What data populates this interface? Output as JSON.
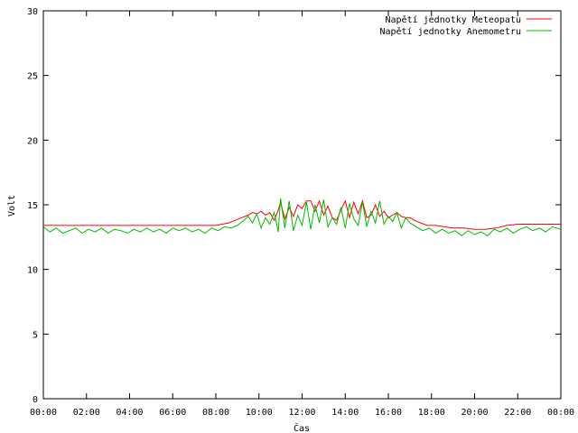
{
  "chart_data": {
    "type": "line",
    "title": "",
    "xlabel": "Čas",
    "ylabel": "Volt",
    "xlim": [
      0,
      24
    ],
    "ylim": [
      0,
      30
    ],
    "x_ticks": [
      "00:00",
      "02:00",
      "04:00",
      "06:00",
      "08:00",
      "10:00",
      "12:00",
      "14:00",
      "16:00",
      "18:00",
      "20:00",
      "22:00",
      "00:00"
    ],
    "y_ticks": [
      0,
      5,
      10,
      15,
      20,
      25,
      30
    ],
    "grid": false,
    "legend": "top-right",
    "series": [
      {
        "name": "Napětí jednotky Meteopatu",
        "color": "#ff0000",
        "x": [
          0,
          0.5,
          1,
          1.5,
          2,
          2.5,
          3,
          3.5,
          4,
          4.5,
          5,
          5.5,
          6,
          6.5,
          7,
          7.5,
          8,
          8.3,
          8.6,
          8.9,
          9.2,
          9.5,
          9.7,
          9.9,
          10.1,
          10.3,
          10.5,
          10.7,
          10.9,
          11.0,
          11.2,
          11.4,
          11.6,
          11.8,
          12.0,
          12.2,
          12.4,
          12.6,
          12.8,
          13.0,
          13.2,
          13.4,
          13.6,
          13.8,
          14.0,
          14.2,
          14.4,
          14.6,
          14.8,
          15.0,
          15.2,
          15.4,
          15.6,
          15.8,
          16.0,
          16.2,
          16.4,
          16.6,
          16.8,
          17.0,
          17.2,
          17.5,
          17.8,
          18.2,
          18.6,
          19.0,
          19.5,
          20.0,
          20.5,
          21.0,
          21.5,
          22.0,
          22.5,
          23.0,
          23.5,
          24.0
        ],
        "y": [
          13.4,
          13.4,
          13.4,
          13.4,
          13.4,
          13.4,
          13.4,
          13.4,
          13.4,
          13.4,
          13.4,
          13.4,
          13.4,
          13.4,
          13.4,
          13.4,
          13.4,
          13.5,
          13.6,
          13.8,
          14.0,
          14.2,
          14.4,
          14.3,
          14.5,
          14.2,
          14.4,
          13.8,
          14.6,
          15.2,
          13.9,
          14.8,
          14.1,
          15.0,
          14.7,
          15.3,
          15.3,
          14.5,
          15.3,
          14.2,
          14.9,
          14.0,
          13.8,
          14.6,
          15.3,
          14.0,
          15.2,
          14.3,
          15.3,
          14.0,
          14.2,
          15.0,
          14.1,
          14.5,
          14.0,
          14.2,
          14.4,
          14.1,
          14.0,
          14.0,
          13.8,
          13.6,
          13.4,
          13.4,
          13.3,
          13.2,
          13.2,
          13.1,
          13.1,
          13.2,
          13.4,
          13.5,
          13.5,
          13.5,
          13.5,
          13.5
        ]
      },
      {
        "name": "Napětí jednotky Anemometru",
        "color": "#00bb00",
        "x": [
          0,
          0.3,
          0.6,
          0.9,
          1.2,
          1.5,
          1.8,
          2.1,
          2.4,
          2.7,
          3.0,
          3.3,
          3.6,
          3.9,
          4.2,
          4.5,
          4.8,
          5.1,
          5.4,
          5.7,
          6.0,
          6.3,
          6.6,
          6.9,
          7.2,
          7.5,
          7.8,
          8.1,
          8.4,
          8.7,
          9.0,
          9.3,
          9.5,
          9.7,
          9.9,
          10.1,
          10.3,
          10.5,
          10.7,
          10.9,
          11.0,
          11.2,
          11.4,
          11.6,
          11.8,
          12.0,
          12.2,
          12.4,
          12.6,
          12.8,
          13.0,
          13.2,
          13.4,
          13.6,
          13.8,
          14.0,
          14.2,
          14.4,
          14.6,
          14.8,
          15.0,
          15.2,
          15.4,
          15.6,
          15.8,
          16.0,
          16.2,
          16.4,
          16.6,
          16.8,
          17.0,
          17.3,
          17.6,
          17.9,
          18.2,
          18.5,
          18.8,
          19.1,
          19.4,
          19.7,
          20.0,
          20.3,
          20.6,
          20.9,
          21.2,
          21.5,
          21.8,
          22.1,
          22.4,
          22.7,
          23.0,
          23.3,
          23.6,
          24.0
        ],
        "y": [
          13.3,
          12.9,
          13.2,
          12.8,
          13.0,
          13.2,
          12.8,
          13.1,
          12.9,
          13.2,
          12.8,
          13.1,
          13.0,
          12.8,
          13.1,
          12.9,
          13.2,
          12.9,
          13.1,
          12.8,
          13.2,
          13.0,
          13.2,
          12.9,
          13.1,
          12.8,
          13.2,
          13.0,
          13.3,
          13.2,
          13.4,
          13.8,
          14.1,
          13.6,
          14.3,
          13.2,
          14.0,
          13.5,
          14.4,
          12.9,
          15.5,
          13.2,
          15.3,
          13.0,
          14.2,
          13.4,
          15.2,
          13.1,
          15.0,
          13.6,
          15.4,
          13.3,
          14.0,
          13.5,
          14.8,
          13.2,
          15.1,
          13.9,
          13.4,
          15.2,
          13.3,
          14.5,
          13.6,
          15.3,
          13.5,
          14.1,
          13.7,
          14.4,
          13.2,
          14.0,
          13.6,
          13.3,
          13.0,
          13.2,
          12.8,
          13.1,
          12.8,
          13.0,
          12.6,
          13.0,
          12.7,
          12.9,
          12.6,
          13.1,
          12.9,
          13.2,
          12.8,
          13.1,
          13.3,
          13.0,
          13.2,
          12.9,
          13.3,
          13.1
        ]
      }
    ]
  }
}
